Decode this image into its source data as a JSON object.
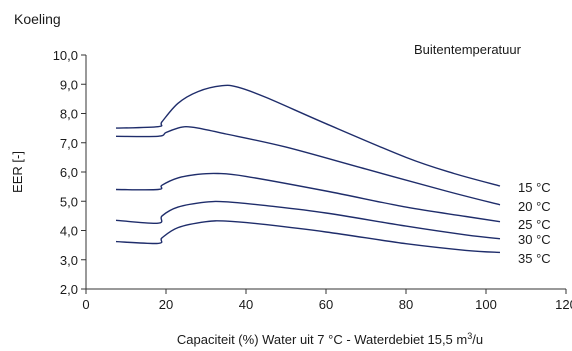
{
  "chart_data": {
    "type": "line",
    "title": "Koeling",
    "ylabel": "EER [-]",
    "xlabel_main": "Capaciteit (%) Water uit 7 °C - Waterdebiet 15,5 m",
    "xlabel_sup": "3",
    "xlabel_tail": "/u",
    "legend_title": "Buitentemperatuur",
    "xlim": [
      0,
      120
    ],
    "ylim": [
      2.0,
      10.0
    ],
    "xticks": [
      {
        "value": 0,
        "label": "0"
      },
      {
        "value": 20,
        "label": "20"
      },
      {
        "value": 40,
        "label": "40"
      },
      {
        "value": 60,
        "label": "60"
      },
      {
        "value": 80,
        "label": "80"
      },
      {
        "value": 100,
        "label": "100"
      },
      {
        "value": 120,
        "label": "120"
      }
    ],
    "yticks": [
      {
        "value": 2.0,
        "label": "2,0"
      },
      {
        "value": 3.0,
        "label": "3,0"
      },
      {
        "value": 4.0,
        "label": "4,0"
      },
      {
        "value": 5.0,
        "label": "5,0"
      },
      {
        "value": 6.0,
        "label": "6,0"
      },
      {
        "value": 7.0,
        "label": "7,0"
      },
      {
        "value": 8.0,
        "label": "8,0"
      },
      {
        "value": 9.0,
        "label": "9,0"
      },
      {
        "value": 10.0,
        "label": "10,0"
      }
    ],
    "grid": false,
    "line_color": "#1f2d6b",
    "series": [
      {
        "name": "15 °C",
        "points": [
          [
            7.5,
            7.5
          ],
          [
            18,
            7.55
          ],
          [
            19,
            7.72
          ],
          [
            23,
            8.35
          ],
          [
            28,
            8.75
          ],
          [
            34,
            8.95
          ],
          [
            38,
            8.9
          ],
          [
            45,
            8.55
          ],
          [
            60,
            7.65
          ],
          [
            80,
            6.5
          ],
          [
            92,
            5.95
          ],
          [
            103.5,
            5.52
          ]
        ]
      },
      {
        "name": "20 °C",
        "points": [
          [
            7.5,
            7.22
          ],
          [
            18,
            7.22
          ],
          [
            20,
            7.35
          ],
          [
            23,
            7.5
          ],
          [
            25,
            7.55
          ],
          [
            28,
            7.5
          ],
          [
            35,
            7.3
          ],
          [
            50,
            6.85
          ],
          [
            70,
            6.1
          ],
          [
            90,
            5.35
          ],
          [
            103.5,
            4.88
          ]
        ]
      },
      {
        "name": "25 °C",
        "points": [
          [
            7.5,
            5.4
          ],
          [
            18,
            5.4
          ],
          [
            19,
            5.55
          ],
          [
            23,
            5.8
          ],
          [
            28,
            5.92
          ],
          [
            33,
            5.95
          ],
          [
            40,
            5.85
          ],
          [
            60,
            5.35
          ],
          [
            80,
            4.8
          ],
          [
            95,
            4.48
          ],
          [
            103.5,
            4.3
          ]
        ]
      },
      {
        "name": "30 °C",
        "points": [
          [
            7.5,
            4.35
          ],
          [
            18,
            4.25
          ],
          [
            19,
            4.5
          ],
          [
            23,
            4.8
          ],
          [
            30,
            4.97
          ],
          [
            35,
            4.98
          ],
          [
            45,
            4.85
          ],
          [
            60,
            4.6
          ],
          [
            80,
            4.15
          ],
          [
            95,
            3.85
          ],
          [
            103.5,
            3.72
          ]
        ]
      },
      {
        "name": "35 °C",
        "points": [
          [
            7.5,
            3.62
          ],
          [
            18,
            3.56
          ],
          [
            19,
            3.75
          ],
          [
            23,
            4.1
          ],
          [
            30,
            4.3
          ],
          [
            35,
            4.32
          ],
          [
            45,
            4.2
          ],
          [
            60,
            3.95
          ],
          [
            80,
            3.55
          ],
          [
            95,
            3.32
          ],
          [
            103.5,
            3.25
          ]
        ]
      }
    ]
  }
}
